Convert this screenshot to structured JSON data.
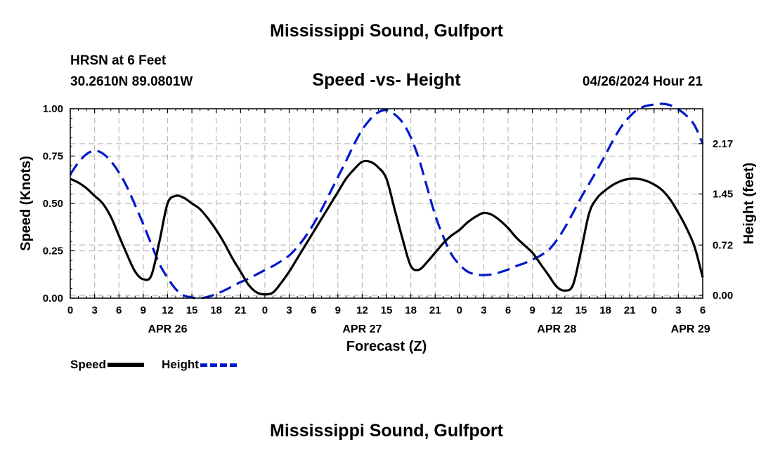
{
  "header": {
    "title": "Mississippi Sound, Gulfport",
    "station": "HRSN at 6 Feet",
    "coords": "30.2610N  89.0801W",
    "subtitle": "Speed -vs- Height",
    "timestamp": "04/26/2024 Hour 21"
  },
  "footer": {
    "title": "Mississippi Sound, Gulfport"
  },
  "legend": {
    "speed_label": "Speed",
    "height_label": "Height"
  },
  "colors": {
    "speed": "#000000",
    "height": "#0018cc",
    "grid": "#bbbbbb"
  },
  "chart_data": {
    "type": "line",
    "xlabel": "Forecast (Z)",
    "ylabel": "Speed (Knots)",
    "y2label": "Height (feet)",
    "x_range_hours": [
      0,
      78
    ],
    "x_tick_labels": [
      "0",
      "3",
      "6",
      "9",
      "12",
      "15",
      "18",
      "21",
      "0",
      "3",
      "6",
      "9",
      "12",
      "15",
      "18",
      "21",
      "0",
      "3",
      "6",
      "9",
      "12",
      "15",
      "18",
      "21",
      "0",
      "3",
      "6"
    ],
    "date_labels": [
      {
        "label": "APR 26",
        "hour": 12
      },
      {
        "label": "APR 27",
        "hour": 36
      },
      {
        "label": "APR 28",
        "hour": 60
      },
      {
        "label": "APR 29",
        "hour": 76.5
      }
    ],
    "ylim": [
      0,
      1.0
    ],
    "y_ticks": [
      "0.00",
      "0.25",
      "0.50",
      "0.75",
      "1.00"
    ],
    "y2lim": [
      -0.04,
      2.67
    ],
    "y2_ticks": [
      0.0,
      0.72,
      1.45,
      2.17
    ],
    "y2_tick_labels": [
      "0.00",
      "0.72",
      "1.45",
      "2.17"
    ],
    "grid": true,
    "series": [
      {
        "name": "Speed",
        "axis": "left",
        "style": "solid",
        "x": [
          0,
          1,
          2,
          3,
          4,
          5,
          6,
          7,
          8,
          9,
          10,
          11,
          12,
          13,
          14,
          15,
          16,
          17,
          18,
          19,
          20,
          21,
          22,
          23,
          24,
          25,
          26,
          27,
          28,
          29,
          30,
          31,
          32,
          33,
          34,
          35,
          36,
          37,
          38,
          39,
          40,
          41,
          42,
          43,
          44,
          45,
          46,
          47,
          48,
          49,
          50,
          51,
          52,
          53,
          54,
          55,
          56,
          57,
          58,
          59,
          60,
          61,
          62,
          63,
          64,
          65,
          66,
          67,
          68,
          69,
          70,
          71,
          72,
          73,
          74,
          75,
          76,
          77,
          78
        ],
        "values": [
          0.63,
          0.61,
          0.58,
          0.54,
          0.5,
          0.43,
          0.33,
          0.23,
          0.14,
          0.1,
          0.12,
          0.3,
          0.5,
          0.54,
          0.53,
          0.5,
          0.47,
          0.42,
          0.36,
          0.29,
          0.21,
          0.14,
          0.07,
          0.03,
          0.02,
          0.03,
          0.08,
          0.14,
          0.21,
          0.28,
          0.35,
          0.42,
          0.49,
          0.56,
          0.63,
          0.68,
          0.72,
          0.72,
          0.69,
          0.63,
          0.47,
          0.31,
          0.17,
          0.15,
          0.19,
          0.24,
          0.29,
          0.33,
          0.36,
          0.4,
          0.43,
          0.45,
          0.44,
          0.41,
          0.37,
          0.32,
          0.28,
          0.24,
          0.18,
          0.12,
          0.06,
          0.04,
          0.07,
          0.25,
          0.45,
          0.53,
          0.57,
          0.6,
          0.62,
          0.63,
          0.63,
          0.62,
          0.6,
          0.57,
          0.52,
          0.45,
          0.37,
          0.27,
          0.11
        ]
      },
      {
        "name": "Height",
        "axis": "right",
        "style": "dashed",
        "x": [
          0,
          1,
          2,
          3,
          4,
          5,
          6,
          7,
          8,
          9,
          10,
          11,
          12,
          13,
          14,
          15,
          16,
          17,
          18,
          19,
          20,
          21,
          22,
          23,
          24,
          25,
          26,
          27,
          28,
          29,
          30,
          31,
          32,
          33,
          34,
          35,
          36,
          37,
          38,
          39,
          40,
          41,
          42,
          43,
          44,
          45,
          46,
          47,
          48,
          49,
          50,
          51,
          52,
          53,
          54,
          55,
          56,
          57,
          58,
          59,
          60,
          61,
          62,
          63,
          64,
          65,
          66,
          67,
          68,
          69,
          70,
          71,
          72,
          73,
          74,
          75,
          76,
          77,
          78
        ],
        "values": [
          1.73,
          1.9,
          2.02,
          2.07,
          2.03,
          1.92,
          1.76,
          1.55,
          1.29,
          1.02,
          0.73,
          0.45,
          0.25,
          0.09,
          0.0,
          -0.03,
          -0.04,
          -0.02,
          0.02,
          0.07,
          0.13,
          0.19,
          0.24,
          0.3,
          0.36,
          0.42,
          0.49,
          0.57,
          0.69,
          0.84,
          1.02,
          1.23,
          1.46,
          1.69,
          1.92,
          2.16,
          2.37,
          2.52,
          2.62,
          2.65,
          2.59,
          2.47,
          2.26,
          1.95,
          1.55,
          1.15,
          0.84,
          0.59,
          0.44,
          0.34,
          0.3,
          0.29,
          0.3,
          0.33,
          0.37,
          0.42,
          0.46,
          0.51,
          0.57,
          0.65,
          0.79,
          0.97,
          1.18,
          1.4,
          1.6,
          1.8,
          2.01,
          2.23,
          2.42,
          2.56,
          2.66,
          2.71,
          2.73,
          2.74,
          2.72,
          2.66,
          2.57,
          2.43,
          2.17
        ]
      }
    ]
  }
}
